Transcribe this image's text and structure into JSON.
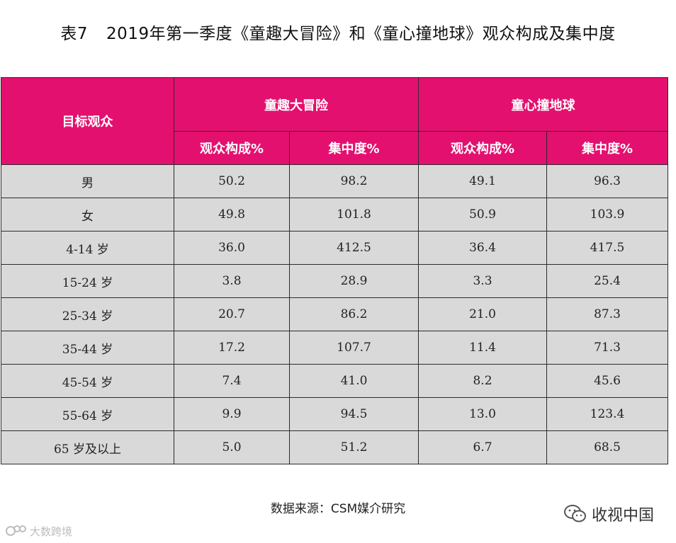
{
  "title": {
    "number": "表7",
    "text": "2019年第一季度《童趣大冒险》和《童心撞地球》观众构成及集中度"
  },
  "table": {
    "row_header": "目标观众",
    "groups": [
      {
        "name": "童趣大冒险",
        "columns": [
          "观众构成%",
          "集中度%"
        ]
      },
      {
        "name": "童心撞地球",
        "columns": [
          "观众构成%",
          "集中度%"
        ]
      }
    ],
    "rows": [
      {
        "label": "男",
        "values": [
          "50.2",
          "98.2",
          "49.1",
          "96.3"
        ]
      },
      {
        "label": "女",
        "values": [
          "49.8",
          "101.8",
          "50.9",
          "103.9"
        ]
      },
      {
        "label": "4-14 岁",
        "values": [
          "36.0",
          "412.5",
          "36.4",
          "417.5"
        ]
      },
      {
        "label": "15-24 岁",
        "values": [
          "3.8",
          "28.9",
          "3.3",
          "25.4"
        ]
      },
      {
        "label": "25-34 岁",
        "values": [
          "20.7",
          "86.2",
          "21.0",
          "87.3"
        ]
      },
      {
        "label": "35-44 岁",
        "values": [
          "17.2",
          "107.7",
          "11.4",
          "71.3"
        ]
      },
      {
        "label": "45-54 岁",
        "values": [
          "7.4",
          "41.0",
          "8.2",
          "45.6"
        ]
      },
      {
        "label": "55-64 岁",
        "values": [
          "9.9",
          "94.5",
          "13.0",
          "123.4"
        ]
      },
      {
        "label": "65 岁及以上",
        "values": [
          "5.0",
          "51.2",
          "6.7",
          "68.5"
        ]
      }
    ]
  },
  "source": "数据来源：CSM媒介研究",
  "watermarks": {
    "left": "大数跨境",
    "right": "收视中国"
  },
  "colors": {
    "header_bg": "#e4106f",
    "body_bg": "#d9d9d9"
  }
}
